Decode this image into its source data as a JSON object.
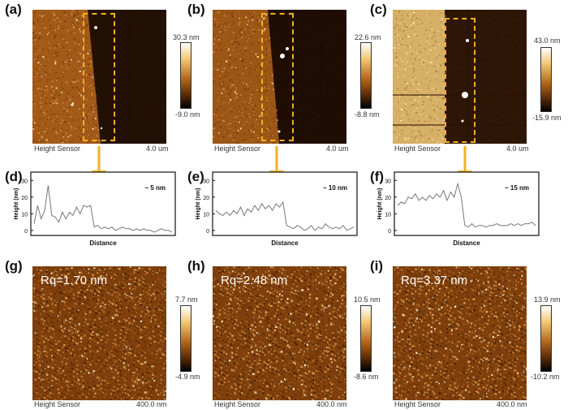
{
  "panels_top": [
    {
      "label": "(a)",
      "cbar_max": "30.3 nm",
      "cbar_min": "-9.0 nm",
      "caption_left": "Height Sensor",
      "caption_right": "4.0 um"
    },
    {
      "label": "(b)",
      "cbar_max": "22.6 nm",
      "cbar_min": "-8.8 nm",
      "caption_left": "Height Sensor",
      "caption_right": "4.0 um"
    },
    {
      "label": "(c)",
      "cbar_max": "43.0 nm",
      "cbar_min": "-15.9 nm",
      "caption_left": "Height Sensor",
      "caption_right": "4.0 um"
    }
  ],
  "profiles": [
    {
      "label": "(d)",
      "ylabel": "Height (nm)",
      "xlabel": "Distance",
      "annotation": "~ 5 nm",
      "yticks": [
        "30",
        "20",
        "10",
        "0"
      ]
    },
    {
      "label": "(e)",
      "ylabel": "Height (nm)",
      "xlabel": "Distance",
      "annotation": "~ 10 nm",
      "yticks": [
        "30",
        "20",
        "10",
        "0"
      ]
    },
    {
      "label": "(f)",
      "ylabel": "Height (nm)",
      "xlabel": "Distance",
      "annotation": "~ 15 nm",
      "yticks": [
        "30",
        "20",
        "10",
        "0"
      ]
    }
  ],
  "panels_bottom": [
    {
      "label": "(g)",
      "rq": "Rq=1.70 nm",
      "cbar_max": "7.7 nm",
      "cbar_min": "-4.9 nm",
      "caption_left": "Height Sensor",
      "caption_right": "400.0 nm"
    },
    {
      "label": "(h)",
      "rq": "Rq=2.48 nm",
      "cbar_max": "10.5 nm",
      "cbar_min": "-8.6 nm",
      "caption_left": "Height Sensor",
      "caption_right": "400.0 nm"
    },
    {
      "label": "(i)",
      "rq": "Rq=3.37 nm",
      "cbar_max": "13.9 nm",
      "cbar_min": "-10.2 nm",
      "caption_left": "Height Sensor",
      "caption_right": "400.0 nm"
    }
  ],
  "chart_data": [
    {
      "type": "line",
      "title": "",
      "annotation": "~ 5 nm",
      "xlabel": "Distance",
      "ylabel": "Height (nm)",
      "ylim": [
        -3,
        35
      ],
      "values": [
        4,
        15,
        7,
        12,
        27,
        9,
        8,
        5,
        11,
        7,
        11,
        9,
        14,
        10,
        15,
        14,
        15,
        2,
        3,
        1,
        2,
        1,
        2,
        0,
        1,
        2,
        1,
        1,
        0,
        1,
        0,
        1,
        0,
        0,
        -1,
        0,
        1,
        0,
        0,
        -1
      ]
    },
    {
      "type": "line",
      "title": "",
      "annotation": "~ 10 nm",
      "xlabel": "Distance",
      "ylabel": "Height (nm)",
      "ylim": [
        -3,
        35
      ],
      "values": [
        12,
        10,
        9,
        11,
        9,
        12,
        10,
        14,
        9,
        13,
        11,
        15,
        12,
        16,
        13,
        15,
        12,
        16,
        14,
        17,
        3,
        2,
        1,
        3,
        2,
        0,
        1,
        3,
        0,
        2,
        1,
        4,
        2,
        1,
        2,
        1,
        3,
        0,
        1,
        2
      ]
    },
    {
      "type": "line",
      "title": "",
      "annotation": "~ 15 nm",
      "xlabel": "Distance",
      "ylabel": "Height (nm)",
      "ylim": [
        -3,
        35
      ],
      "values": [
        15,
        17,
        16,
        20,
        19,
        22,
        18,
        20,
        18,
        21,
        19,
        22,
        20,
        24,
        18,
        23,
        20,
        28,
        20,
        3,
        2,
        4,
        2,
        3,
        3,
        2,
        3,
        3,
        4,
        3,
        3,
        3,
        4,
        3,
        4,
        3,
        4,
        4,
        5,
        3
      ]
    }
  ],
  "colors": {
    "dash": "#f2b21e",
    "arrow": "#f2b21e",
    "line": "#777777"
  }
}
